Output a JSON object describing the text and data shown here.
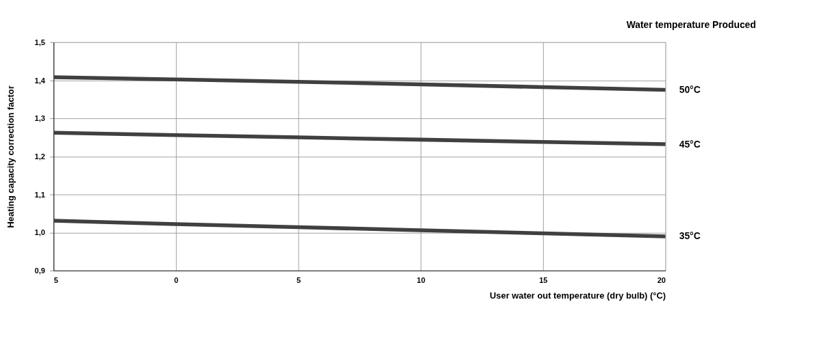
{
  "chart_data": {
    "type": "line",
    "xlabel": "User water out  temperature (dry bulb) (°C)",
    "ylabel": "Heating capacity correction factor",
    "legend_title": "Water temperature Produced",
    "x": [
      -5,
      0,
      5,
      10,
      15,
      20
    ],
    "series": [
      {
        "name": "50°C",
        "color": "#404040",
        "values": [
          1.408,
          1.402,
          1.396,
          1.389,
          1.382,
          1.375
        ]
      },
      {
        "name": "45°C",
        "color": "#404040",
        "values": [
          1.262,
          1.256,
          1.25,
          1.244,
          1.238,
          1.232
        ]
      },
      {
        "name": "35°C",
        "color": "#404040",
        "values": [
          1.031,
          1.022,
          1.014,
          1.006,
          0.998,
          0.99
        ]
      }
    ],
    "xlim": [
      -5,
      20
    ],
    "xticks": [
      {
        "value": -5,
        "label": "5"
      },
      0,
      5,
      10,
      15,
      20
    ],
    "ylim": [
      0.9,
      1.5
    ],
    "yticks": [
      {
        "value": 0.9,
        "label": "0,9"
      },
      {
        "value": 1.0,
        "label": "1,0"
      },
      {
        "value": 1.1,
        "label": "1,1"
      },
      {
        "value": 1.2,
        "label": "1,2"
      },
      {
        "value": 1.3,
        "label": "1,3"
      },
      {
        "value": 1.4,
        "label": "1,4"
      },
      {
        "value": 1.5,
        "label": "1,5"
      }
    ],
    "grid": true,
    "marker": "none",
    "line_style": "solid",
    "legend": "right"
  }
}
